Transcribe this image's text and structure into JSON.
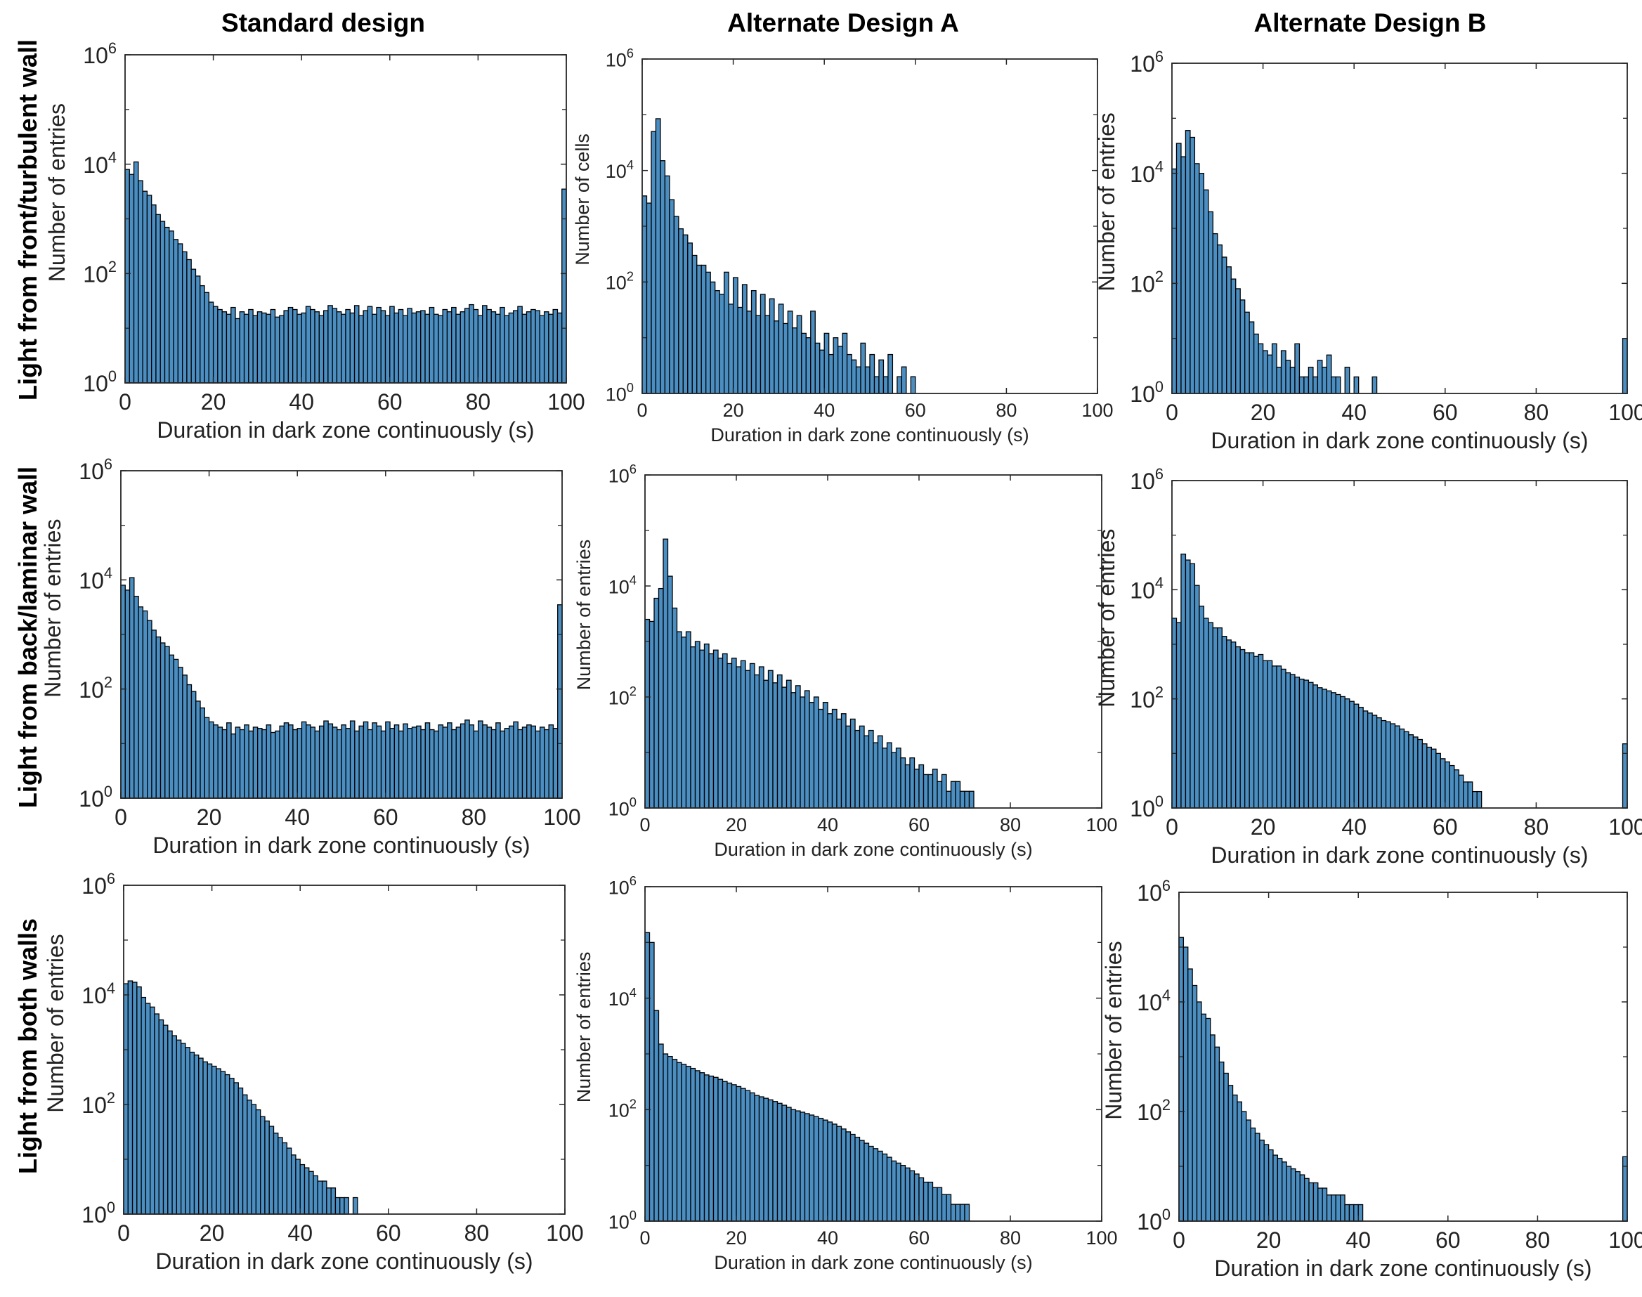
{
  "column_titles": [
    "Standard design",
    "Alternate Design A",
    "Alternate Design B"
  ],
  "row_titles": [
    "Light from front/turbulent wall",
    "Light from back/laminar wall",
    "Light from both walls"
  ],
  "colors": {
    "bar_fill": "#4b8ec2",
    "bar_edge": "#000000",
    "axis": "#262626"
  },
  "chart_data": [
    {
      "id": "r1c1",
      "type": "bar",
      "title": "",
      "xlabel": "Duration in dark zone continuously (s)",
      "ylabel": "Number of entries",
      "yscale": "log",
      "xlim": [
        0,
        100
      ],
      "ylim": [
        1,
        1000000
      ],
      "bin_width": 1,
      "xticks": [
        "0",
        "20",
        "40",
        "60",
        "80",
        "100"
      ],
      "ytick_exponents": [
        "0",
        "2",
        "4",
        "6"
      ],
      "values": [
        8000,
        6500,
        11000,
        5000,
        3200,
        2700,
        1800,
        1200,
        900,
        700,
        600,
        420,
        350,
        250,
        180,
        120,
        90,
        60,
        45,
        30,
        25,
        22,
        20,
        18,
        24,
        15,
        20,
        18,
        22,
        17,
        20,
        19,
        18,
        22,
        16,
        17,
        21,
        24,
        22,
        18,
        19,
        25,
        22,
        20,
        17,
        21,
        26,
        23,
        20,
        18,
        22,
        19,
        26,
        17,
        21,
        25,
        18,
        24,
        21,
        17,
        25,
        19,
        22,
        17,
        23,
        19,
        20,
        21,
        18,
        24,
        18,
        17,
        22,
        20,
        24,
        18,
        20,
        23,
        27,
        22,
        17,
        26,
        22,
        20,
        18,
        24,
        17,
        19,
        21,
        25,
        18,
        20,
        22,
        21,
        17,
        20,
        18,
        22,
        19,
        3500
      ]
    },
    {
      "id": "r1c2",
      "type": "bar",
      "title": "",
      "xlabel": "Duration in dark zone continuously (s)",
      "ylabel": "Number of cells",
      "yscale": "log",
      "xlim": [
        0,
        100
      ],
      "ylim": [
        1,
        1000000
      ],
      "bin_width": 1,
      "xticks": [
        "0",
        "20",
        "40",
        "60",
        "80",
        "100"
      ],
      "ytick_exponents": [
        "0",
        "2",
        "4",
        "6"
      ],
      "values": [
        3500,
        2600,
        50000,
        85000,
        15000,
        8000,
        3000,
        1500,
        900,
        700,
        500,
        300,
        200,
        200,
        150,
        100,
        70,
        60,
        150,
        40,
        120,
        35,
        90,
        30,
        70,
        25,
        60,
        25,
        50,
        20,
        40,
        18,
        30,
        15,
        25,
        12,
        10,
        30,
        8,
        6,
        12,
        5,
        10,
        7,
        12,
        5,
        4,
        3,
        8,
        3,
        5,
        2,
        4,
        2,
        5,
        1,
        2,
        3,
        1,
        2,
        1,
        1,
        0,
        0,
        0,
        0,
        0,
        0,
        0,
        0,
        0,
        0,
        0,
        0,
        0,
        0,
        0,
        0,
        0,
        0,
        0,
        0,
        0,
        0,
        0,
        0,
        0,
        0,
        0,
        0,
        0,
        0,
        0,
        0,
        0,
        0,
        0,
        0,
        0,
        0
      ]
    },
    {
      "id": "r1c3",
      "type": "bar",
      "title": "",
      "xlabel": "Duration in dark zone continuously (s)",
      "ylabel": "Number of entries",
      "yscale": "log",
      "xlim": [
        0,
        100
      ],
      "ylim": [
        1,
        1000000
      ],
      "bin_width": 1,
      "xticks": [
        "0",
        "20",
        "40",
        "60",
        "80",
        "100"
      ],
      "ytick_exponents": [
        "0",
        "2",
        "4",
        "6"
      ],
      "values": [
        12000,
        35000,
        20000,
        60000,
        45000,
        15000,
        10000,
        5000,
        2000,
        800,
        500,
        300,
        200,
        120,
        80,
        50,
        30,
        20,
        12,
        8,
        6,
        5,
        8,
        3,
        6,
        4,
        3,
        8,
        2,
        2,
        3,
        2,
        4,
        3,
        5,
        2,
        2,
        1,
        3,
        1,
        2,
        1,
        0,
        1,
        2,
        1,
        0,
        0,
        1,
        0,
        1,
        0,
        0,
        0,
        0,
        0,
        0,
        0,
        0,
        0,
        0,
        0,
        0,
        0,
        0,
        0,
        0,
        0,
        0,
        0,
        0,
        0,
        0,
        0,
        0,
        0,
        0,
        0,
        0,
        0,
        0,
        0,
        0,
        0,
        0,
        0,
        0,
        0,
        0,
        0,
        0,
        0,
        0,
        0,
        0,
        0,
        0,
        0,
        0,
        10
      ]
    },
    {
      "id": "r2c1",
      "type": "bar",
      "title": "",
      "xlabel": "Duration in dark zone continuously (s)",
      "ylabel": "Number of entries",
      "yscale": "log",
      "xlim": [
        0,
        100
      ],
      "ylim": [
        1,
        1000000
      ],
      "bin_width": 1,
      "xticks": [
        "0",
        "20",
        "40",
        "60",
        "80",
        "100"
      ],
      "ytick_exponents": [
        "0",
        "2",
        "4",
        "6"
      ],
      "values": [
        8000,
        6500,
        11000,
        5000,
        3200,
        2700,
        1800,
        1200,
        900,
        700,
        600,
        420,
        350,
        250,
        180,
        120,
        90,
        60,
        45,
        30,
        25,
        22,
        20,
        18,
        24,
        15,
        20,
        18,
        22,
        17,
        20,
        19,
        18,
        22,
        16,
        17,
        21,
        24,
        22,
        18,
        19,
        25,
        22,
        20,
        17,
        21,
        26,
        23,
        20,
        18,
        22,
        19,
        26,
        17,
        21,
        25,
        18,
        24,
        21,
        17,
        25,
        19,
        22,
        17,
        23,
        19,
        20,
        21,
        18,
        24,
        18,
        17,
        22,
        20,
        24,
        18,
        20,
        23,
        27,
        22,
        17,
        26,
        22,
        20,
        18,
        24,
        17,
        19,
        21,
        25,
        18,
        20,
        22,
        21,
        17,
        20,
        18,
        22,
        19,
        3500
      ]
    },
    {
      "id": "r2c2",
      "type": "bar",
      "title": "",
      "xlabel": "Duration in dark zone continuously (s)",
      "ylabel": "Number of entries",
      "yscale": "log",
      "xlim": [
        0,
        100
      ],
      "ylim": [
        1,
        1000000
      ],
      "bin_width": 1,
      "xticks": [
        "0",
        "20",
        "40",
        "60",
        "80",
        "100"
      ],
      "ytick_exponents": [
        "0",
        "2",
        "4",
        "6"
      ],
      "values": [
        2500,
        2300,
        6000,
        9000,
        70000,
        15000,
        4000,
        1500,
        1200,
        1500,
        800,
        1000,
        700,
        900,
        600,
        700,
        500,
        600,
        400,
        500,
        350,
        450,
        300,
        400,
        250,
        350,
        200,
        300,
        180,
        250,
        150,
        200,
        120,
        160,
        100,
        130,
        80,
        100,
        60,
        80,
        50,
        60,
        40,
        50,
        30,
        40,
        25,
        30,
        20,
        25,
        15,
        20,
        12,
        15,
        10,
        12,
        8,
        6,
        8,
        5,
        6,
        4,
        4,
        5,
        3,
        4,
        2,
        3,
        3,
        2,
        2,
        2,
        1,
        1,
        1,
        1,
        0,
        0,
        0,
        0,
        0,
        0,
        0,
        0,
        0,
        0,
        0,
        0,
        0,
        0,
        0,
        0,
        0,
        0,
        0,
        0,
        0,
        0,
        0,
        0
      ]
    },
    {
      "id": "r2c3",
      "type": "bar",
      "title": "",
      "xlabel": "Duration in dark zone continuously (s)",
      "ylabel": "Number of entries",
      "yscale": "log",
      "xlim": [
        0,
        100
      ],
      "ylim": [
        1,
        1000000
      ],
      "bin_width": 1,
      "xticks": [
        "0",
        "20",
        "40",
        "60",
        "80",
        "100"
      ],
      "ytick_exponents": [
        "0",
        "2",
        "4",
        "6"
      ],
      "values": [
        3000,
        2500,
        45000,
        35000,
        30000,
        12000,
        5000,
        3000,
        2500,
        2000,
        2000,
        1400,
        1200,
        1100,
        900,
        800,
        700,
        700,
        600,
        650,
        500,
        500,
        400,
        400,
        350,
        300,
        280,
        250,
        230,
        220,
        200,
        180,
        160,
        150,
        140,
        130,
        120,
        110,
        100,
        90,
        80,
        70,
        60,
        55,
        50,
        45,
        40,
        38,
        35,
        32,
        28,
        25,
        22,
        20,
        18,
        15,
        13,
        12,
        10,
        8,
        7,
        6,
        5,
        4,
        3,
        3,
        2,
        2,
        1,
        1,
        1,
        1,
        1,
        1,
        1,
        1,
        1,
        0,
        1,
        0,
        1,
        0,
        1,
        0,
        0,
        1,
        0,
        0,
        0,
        1,
        0,
        0,
        0,
        0,
        0,
        0,
        0,
        0,
        0,
        15
      ]
    },
    {
      "id": "r3c1",
      "type": "bar",
      "title": "",
      "xlabel": "Duration in dark zone continuously (s)",
      "ylabel": "Number of entries",
      "yscale": "log",
      "xlim": [
        0,
        100
      ],
      "ylim": [
        1,
        1000000
      ],
      "bin_width": 1,
      "xticks": [
        "0",
        "20",
        "40",
        "60",
        "80",
        "100"
      ],
      "ytick_exponents": [
        "0",
        "2",
        "4",
        "6"
      ],
      "values": [
        16000,
        18000,
        17000,
        14000,
        9000,
        7000,
        6000,
        4500,
        3500,
        2800,
        2200,
        1800,
        1500,
        1300,
        1100,
        900,
        800,
        700,
        600,
        550,
        500,
        450,
        400,
        350,
        300,
        250,
        200,
        150,
        120,
        100,
        80,
        60,
        50,
        40,
        30,
        25,
        20,
        16,
        12,
        10,
        8,
        7,
        6,
        5,
        4,
        4,
        3,
        3,
        2,
        2,
        2,
        1,
        2,
        1,
        1,
        1,
        1,
        1,
        0,
        0,
        0,
        0,
        0,
        0,
        0,
        0,
        0,
        0,
        0,
        0,
        0,
        0,
        0,
        0,
        0,
        0,
        0,
        0,
        0,
        0,
        0,
        0,
        0,
        0,
        0,
        0,
        0,
        0,
        0,
        0,
        0,
        0,
        0,
        0,
        0,
        0,
        0,
        0,
        0,
        0
      ]
    },
    {
      "id": "r3c2",
      "type": "bar",
      "title": "",
      "xlabel": "Duration in dark zone continuously (s)",
      "ylabel": "Number of entries",
      "yscale": "log",
      "xlim": [
        0,
        100
      ],
      "ylim": [
        1,
        1000000
      ],
      "bin_width": 1,
      "xticks": [
        "0",
        "20",
        "40",
        "60",
        "80",
        "100"
      ],
      "ytick_exponents": [
        "0",
        "2",
        "4",
        "6"
      ],
      "values": [
        150000,
        100000,
        6000,
        1500,
        1000,
        900,
        800,
        700,
        650,
        600,
        550,
        500,
        460,
        420,
        400,
        380,
        350,
        320,
        300,
        280,
        260,
        240,
        220,
        200,
        180,
        170,
        160,
        150,
        140,
        130,
        120,
        110,
        100,
        95,
        90,
        85,
        80,
        75,
        70,
        65,
        60,
        55,
        50,
        45,
        40,
        36,
        32,
        28,
        25,
        22,
        20,
        18,
        16,
        14,
        12,
        11,
        10,
        9,
        8,
        7,
        6,
        5,
        5,
        4,
        4,
        3,
        3,
        2,
        2,
        2,
        2,
        1,
        1,
        1,
        1,
        1,
        1,
        1,
        0,
        0,
        1,
        0,
        0,
        0,
        0,
        0,
        0,
        0,
        0,
        0,
        0,
        0,
        0,
        0,
        0,
        0,
        0,
        0,
        0,
        0
      ]
    },
    {
      "id": "r3c3",
      "type": "bar",
      "title": "",
      "xlabel": "Duration in dark zone continuously (s)",
      "ylabel": "Number of entries",
      "yscale": "log",
      "xlim": [
        0,
        100
      ],
      "ylim": [
        1,
        1000000
      ],
      "bin_width": 1,
      "xticks": [
        "0",
        "20",
        "40",
        "60",
        "80",
        "100"
      ],
      "ytick_exponents": [
        "0",
        "2",
        "4",
        "6"
      ],
      "values": [
        150000,
        100000,
        40000,
        20000,
        10000,
        6000,
        5000,
        2500,
        1500,
        800,
        500,
        300,
        200,
        150,
        100,
        70,
        50,
        40,
        30,
        25,
        20,
        16,
        14,
        12,
        10,
        9,
        8,
        7,
        6,
        5,
        5,
        4,
        4,
        3,
        3,
        3,
        3,
        2,
        2,
        2,
        2,
        1,
        1,
        0,
        1,
        0,
        1,
        0,
        1,
        0,
        1,
        0,
        1,
        0,
        0,
        0,
        0,
        0,
        0,
        0,
        0,
        0,
        0,
        0,
        0,
        0,
        0,
        0,
        0,
        0,
        0,
        0,
        0,
        0,
        0,
        0,
        0,
        0,
        0,
        0,
        0,
        0,
        1,
        0,
        0,
        0,
        0,
        0,
        1,
        0,
        0,
        0,
        0,
        0,
        0,
        0,
        0,
        0,
        0,
        15
      ]
    }
  ]
}
